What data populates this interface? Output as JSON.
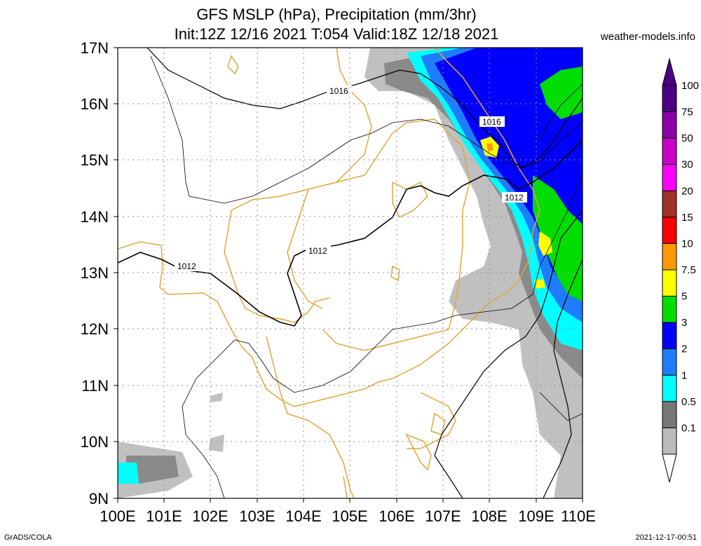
{
  "title_line1": "GFS MSLP (hPa), Precipitation (mm/3hr)",
  "title_line2": "Init:12Z 12/16 2021 T:054 Valid:18Z 12/18 2021",
  "site": "weather-models.info",
  "footer_left": "GrADS/COLA",
  "footer_right": "2021-12-17-00:51",
  "map": {
    "lat_labels": [
      "17N",
      "16N",
      "15N",
      "14N",
      "13N",
      "12N",
      "11N",
      "10N",
      "9N"
    ],
    "lon_labels": [
      "100E",
      "101E",
      "102E",
      "103E",
      "104E",
      "105E",
      "106E",
      "107E",
      "108E",
      "109E",
      "110E"
    ],
    "lat_range": [
      9,
      17
    ],
    "lon_range": [
      100,
      110
    ],
    "grid": true
  },
  "isobar_labels": [
    "1016",
    "1016",
    "1012",
    "1012",
    "1012"
  ],
  "colorbar": {
    "levels": [
      "100",
      "75",
      "50",
      "30",
      "20",
      "15",
      "10",
      "7.5",
      "5",
      "3",
      "2",
      "1",
      "0.5",
      "0.1"
    ],
    "colors": [
      "#4b0082",
      "#8b00a8",
      "#c800c8",
      "#ff00ff",
      "#a03028",
      "#ff0000",
      "#ff9900",
      "#ffff00",
      "#00dd00",
      "#0000ff",
      "#1e7dff",
      "#00ffff",
      "#777777",
      "#bbbbbb"
    ]
  }
}
